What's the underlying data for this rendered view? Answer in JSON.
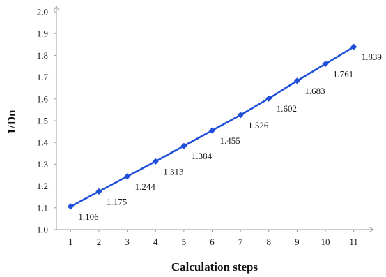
{
  "chart_data": {
    "type": "line",
    "title": "",
    "xlabel": "Calculation steps",
    "ylabel": "1/Dn",
    "x": [
      1,
      2,
      3,
      4,
      5,
      6,
      7,
      8,
      9,
      10,
      11
    ],
    "series": [
      {
        "values": [
          1.106,
          1.175,
          1.244,
          1.313,
          1.384,
          1.455,
          1.526,
          1.602,
          1.683,
          1.761,
          1.839
        ],
        "data_labels": [
          "1.106",
          "1.175",
          "1.244",
          "1.313",
          "1.384",
          "1.455",
          "1.526",
          "1.602",
          "1.683",
          "1.761",
          "1.839"
        ],
        "color": "#1f4fd8",
        "marker": "diamond"
      }
    ],
    "xlim": [
      0.5,
      11.5
    ],
    "ylim": [
      1.0,
      2.0
    ],
    "y_ticks": [
      "1.0",
      "1.1",
      "1.2",
      "1.3",
      "1.4",
      "1.5",
      "1.6",
      "1.7",
      "1.8",
      "1.9",
      "2.0"
    ],
    "x_ticks": [
      "1",
      "2",
      "3",
      "4",
      "5",
      "6",
      "7",
      "8",
      "9",
      "10",
      "11"
    ],
    "grid": false,
    "legend": "none",
    "axis_color": "#9a9a9a"
  }
}
